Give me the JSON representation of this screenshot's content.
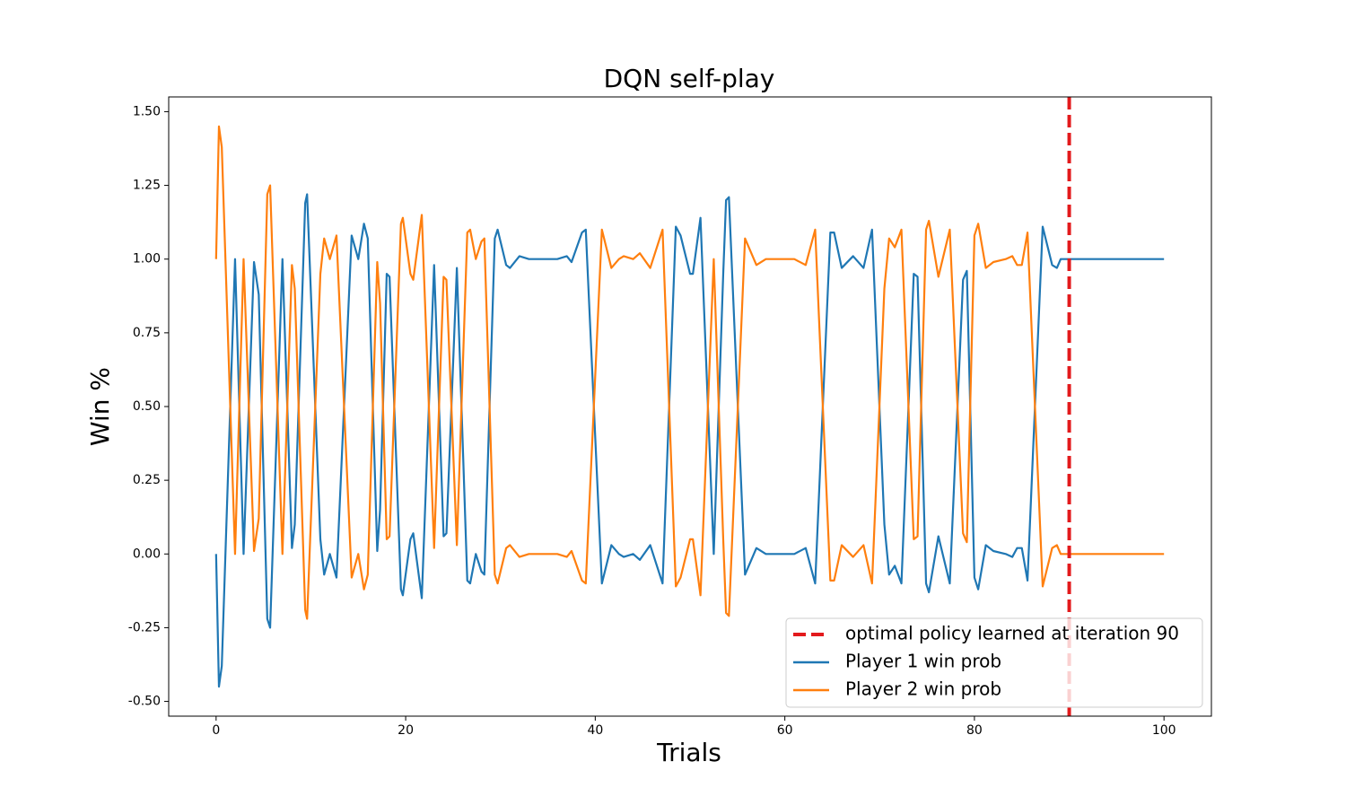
{
  "chart_data": {
    "type": "line",
    "title": "DQN self-play",
    "xlabel": "Trials",
    "ylabel": "Win %",
    "x": [
      0,
      0.3,
      0.6,
      2,
      2.9,
      4,
      4.5,
      5.4,
      5.7,
      7,
      8,
      8.3,
      9.4,
      9.6,
      11,
      11.4,
      12,
      12.7,
      14.3,
      15,
      15.6,
      16,
      17,
      17.3,
      18,
      18.3,
      19.5,
      19.7,
      20.5,
      20.8,
      21.7,
      23,
      24,
      24.3,
      25.4,
      26.5,
      26.8,
      27.4,
      28,
      28.3,
      29.4,
      29.7,
      30.6,
      31,
      32,
      33,
      35,
      36,
      37,
      37.5,
      38.6,
      39,
      40.7,
      41.7,
      42.5,
      43,
      44,
      44.7,
      45.8,
      47.1,
      48.5,
      49,
      50,
      50.3,
      51.1,
      52.5,
      53.5,
      53.8,
      54.1,
      55.8,
      57,
      58,
      60,
      61,
      62.2,
      63.2,
      64.8,
      65.2,
      66,
      67.2,
      68.3,
      69.2,
      70.5,
      71,
      71.6,
      72.3,
      73.6,
      74,
      74.9,
      75.2,
      76.2,
      77.4,
      78.8,
      79.2,
      80,
      80.4,
      81.2,
      82,
      83.3,
      84,
      84.5,
      85,
      85.6,
      87.2,
      88.2,
      88.7,
      89.1,
      90,
      100
    ],
    "series": [
      {
        "name": "Player 1 win prob",
        "color": "#1f77b4",
        "values": [
          0,
          -0.45,
          -0.38,
          1,
          0,
          0.99,
          0.88,
          -0.22,
          -0.25,
          1,
          0.02,
          0.1,
          1.19,
          1.22,
          0.05,
          -0.07,
          0,
          -0.08,
          1.08,
          1,
          1.12,
          1.07,
          0.01,
          0.15,
          0.95,
          0.94,
          -0.12,
          -0.14,
          0.05,
          0.07,
          -0.15,
          0.98,
          0.06,
          0.07,
          0.97,
          -0.09,
          -0.1,
          0,
          -0.06,
          -0.07,
          1.07,
          1.1,
          0.98,
          0.97,
          1.01,
          1,
          1,
          1,
          1.01,
          0.99,
          1.09,
          1.1,
          -0.1,
          0.03,
          0,
          -0.01,
          0,
          -0.02,
          0.03,
          -0.1,
          1.11,
          1.08,
          0.95,
          0.95,
          1.14,
          0,
          0.95,
          1.2,
          1.21,
          -0.07,
          0.02,
          0,
          0,
          0,
          0.02,
          -0.1,
          1.09,
          1.09,
          0.97,
          1.01,
          0.97,
          1.1,
          0.1,
          -0.07,
          -0.04,
          -0.1,
          0.95,
          0.94,
          -0.1,
          -0.13,
          0.06,
          -0.1,
          0.93,
          0.96,
          -0.08,
          -0.12,
          0.03,
          0.01,
          0,
          -0.01,
          0.02,
          0.02,
          -0.09,
          1.11,
          0.98,
          0.97,
          1,
          1,
          1
        ]
      },
      {
        "name": "Player 2 win prob",
        "color": "#ff7f0e",
        "values": [
          1,
          1.45,
          1.38,
          0,
          1,
          0.01,
          0.12,
          1.22,
          1.25,
          0,
          0.98,
          0.9,
          -0.19,
          -0.22,
          0.95,
          1.07,
          1,
          1.08,
          -0.08,
          0,
          -0.12,
          -0.07,
          0.99,
          0.85,
          0.05,
          0.06,
          1.12,
          1.14,
          0.95,
          0.93,
          1.15,
          0.02,
          0.94,
          0.93,
          0.03,
          1.09,
          1.1,
          1,
          1.06,
          1.07,
          -0.07,
          -0.1,
          0.02,
          0.03,
          -0.01,
          0,
          0,
          0,
          -0.01,
          0.01,
          -0.09,
          -0.1,
          1.1,
          0.97,
          1,
          1.01,
          1,
          1.02,
          0.97,
          1.1,
          -0.11,
          -0.08,
          0.05,
          0.05,
          -0.14,
          1,
          0.05,
          -0.2,
          -0.21,
          1.07,
          0.98,
          1,
          1,
          1,
          0.98,
          1.1,
          -0.09,
          -0.09,
          0.03,
          -0.01,
          0.03,
          -0.1,
          0.9,
          1.07,
          1.04,
          1.1,
          0.05,
          0.06,
          1.1,
          1.13,
          0.94,
          1.1,
          0.07,
          0.04,
          1.08,
          1.12,
          0.97,
          0.99,
          1,
          1.01,
          0.98,
          0.98,
          1.09,
          -0.11,
          0.02,
          0.03,
          0,
          0,
          0
        ]
      }
    ],
    "vline": {
      "x": 90,
      "name": "optimal policy learned at iteration 90",
      "color": "#e31a1c",
      "style": "dashed"
    },
    "xlim": [
      -5,
      105
    ],
    "xticks": [
      0,
      20,
      40,
      60,
      80,
      100
    ],
    "ylim": [
      -0.55,
      1.55
    ],
    "yticks": [
      {
        "value": -0.5,
        "label": "-0.50"
      },
      {
        "value": -0.25,
        "label": "-0.25"
      },
      {
        "value": 0,
        "label": "0.00"
      },
      {
        "value": 0.25,
        "label": "0.25"
      },
      {
        "value": 0.5,
        "label": "0.50"
      },
      {
        "value": 0.75,
        "label": "0.75"
      },
      {
        "value": 1,
        "label": "1.00"
      },
      {
        "value": 1.25,
        "label": "1.25"
      },
      {
        "value": 1.5,
        "label": "1.50"
      }
    ],
    "legend": "lower right",
    "grid": false
  }
}
